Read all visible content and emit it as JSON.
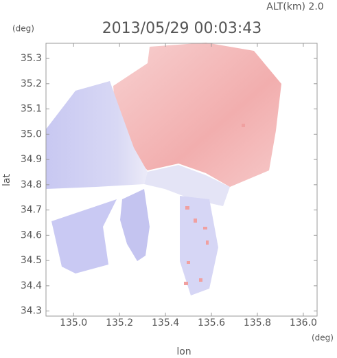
{
  "chart_data": {
    "type": "map",
    "title": "2013/05/29 00:03:43",
    "subtitle": "ALT(km) 2.0",
    "y_unit": "(deg)",
    "x_unit": "(deg)",
    "xlabel": "lon",
    "ylabel": "lat",
    "xlim": [
      134.88,
      136.06
    ],
    "ylim": [
      34.28,
      35.36
    ],
    "xticks": [
      {
        "value": 135,
        "label": "135.0"
      },
      135.2,
      135.4,
      135.6,
      135.8,
      {
        "value": 136,
        "label": "136.0"
      }
    ],
    "yticks": [
      {
        "value": 34.3,
        "label": "34.3"
      },
      34.4,
      34.5,
      34.6,
      34.7,
      34.8,
      34.9,
      {
        "value": 35,
        "label": "35.0"
      },
      35.1,
      35.2,
      35.3
    ]
  }
}
